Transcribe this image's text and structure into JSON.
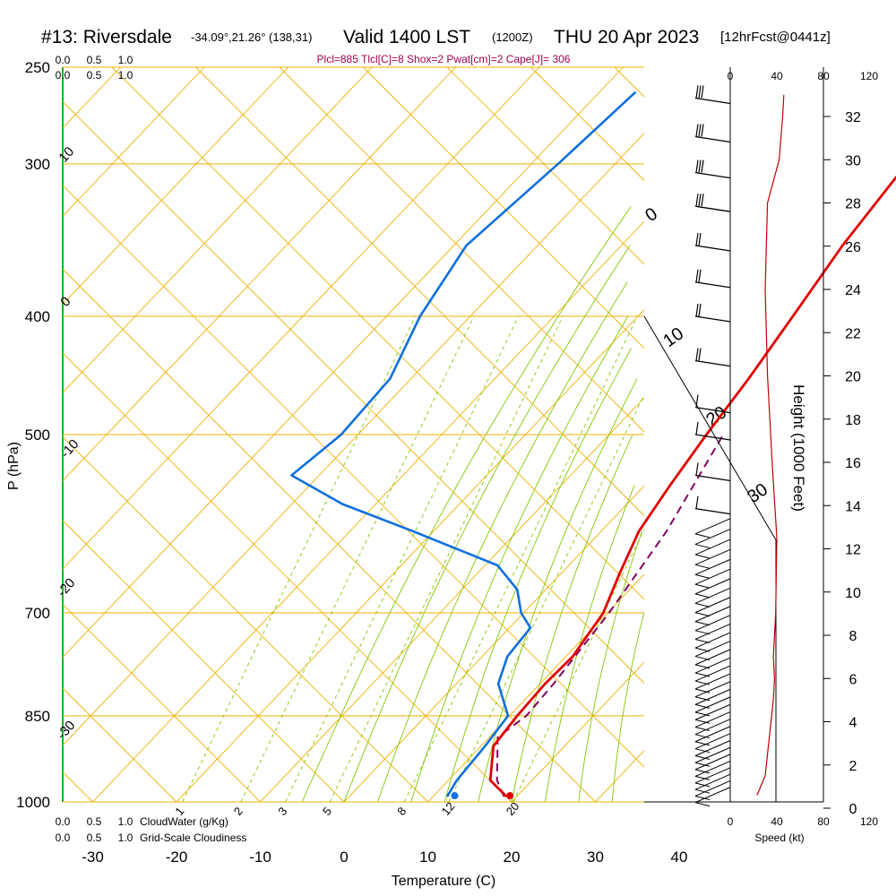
{
  "header": {
    "station": "#13: Riversdale",
    "coords": "-34.09°,21.26° (138,31)",
    "valid": "Valid 1400 LST",
    "utc": "(1200Z)",
    "date": "THU 20 Apr 2023",
    "forecast": "[12hrFcst@0441z]",
    "indices": "Plcl=885 Tlcl[C]=8 Shox=2 Pwat[cm]=2 Cape[J]= 306"
  },
  "colors": {
    "isotherm": "#f0b000",
    "mixing_ratio": "#80c800",
    "temperature": "#e00000",
    "dewpoint": "#1070e0",
    "parcel": "#800060",
    "cloudwater": "#20b020",
    "height": "#c00000",
    "indices": "#a00050"
  },
  "chart_data": {
    "type": "skewt",
    "xlabel": "Temperature (C)",
    "ylabel": "P (hPa)",
    "y2label": "Height (1000 Feet)",
    "x_ticks": [
      -30,
      -20,
      -10,
      0,
      10,
      20,
      30,
      40
    ],
    "p_ticks": [
      250,
      300,
      400,
      500,
      700,
      850,
      1000
    ],
    "p_range": [
      1000,
      250
    ],
    "height_ticks": [
      0,
      2,
      4,
      6,
      8,
      10,
      12,
      14,
      16,
      18,
      20,
      22,
      24,
      26,
      28,
      30,
      32
    ],
    "speed_label": "Speed (kt)",
    "speed_ticks": [
      "0",
      "40",
      "80",
      "120"
    ],
    "cloudwater_label": "CloudWater (g/Kg)",
    "cloudwater_ticks": [
      "0.0",
      "0.5",
      "1.0"
    ],
    "cloudiness_label": "Grid-Scale Cloudiness",
    "cloudiness_ticks": [
      "0.0",
      "0.5",
      "1.0"
    ],
    "isotherm_labels": [
      "10",
      "0",
      "-10",
      "-20",
      "-30"
    ],
    "mixing_ratio_labels": [
      "1",
      "2",
      "3",
      "5",
      "8",
      "12",
      "20"
    ],
    "theta_labels": [
      "0",
      "10",
      "20",
      "30"
    ],
    "temperature": [
      {
        "p": 990,
        "t": 18.8
      },
      {
        "p": 960,
        "t": 15.0
      },
      {
        "p": 900,
        "t": 11.5
      },
      {
        "p": 850,
        "t": 10.9
      },
      {
        "p": 800,
        "t": 10.6
      },
      {
        "p": 760,
        "t": 10.8
      },
      {
        "p": 700,
        "t": 9.5
      },
      {
        "p": 650,
        "t": 7.0
      },
      {
        "p": 600,
        "t": 4.5
      },
      {
        "p": 550,
        "t": 3.0
      },
      {
        "p": 500,
        "t": 1.6
      },
      {
        "p": 450,
        "t": 0.3
      },
      {
        "p": 400,
        "t": -1.5
      },
      {
        "p": 350,
        "t": -3.6
      },
      {
        "p": 300,
        "t": -5.2
      },
      {
        "p": 262,
        "t": -6.7
      }
    ],
    "dewpoint": [
      {
        "p": 990,
        "t": 11.7
      },
      {
        "p": 960,
        "t": 11.0
      },
      {
        "p": 900,
        "t": 10.5
      },
      {
        "p": 850,
        "t": 9.8
      },
      {
        "p": 800,
        "t": 5.0
      },
      {
        "p": 760,
        "t": 3.0
      },
      {
        "p": 720,
        "t": 2.5
      },
      {
        "p": 700,
        "t": -0.3
      },
      {
        "p": 670,
        "t": -3.4
      },
      {
        "p": 640,
        "t": -8.5
      },
      {
        "p": 600,
        "t": -22.5
      },
      {
        "p": 570,
        "t": -34.0
      },
      {
        "p": 540,
        "t": -43.3
      },
      {
        "p": 500,
        "t": -42.0
      },
      {
        "p": 450,
        "t": -42.5
      },
      {
        "p": 400,
        "t": -46.0
      },
      {
        "p": 350,
        "t": -48.5
      },
      {
        "p": 300,
        "t": -46.8
      },
      {
        "p": 262,
        "t": -45.7
      }
    ],
    "parcel": [
      {
        "p": 990,
        "t": 18.5
      },
      {
        "p": 960,
        "t": 15.8
      },
      {
        "p": 885,
        "t": 11.0
      },
      {
        "p": 850,
        "t": 12.0
      },
      {
        "p": 800,
        "t": 11.6
      },
      {
        "p": 700,
        "t": 10.2
      },
      {
        "p": 600,
        "t": 7.8
      },
      {
        "p": 500,
        "t": 3.6
      }
    ],
    "surface": {
      "t": 19.2,
      "td": 12.6
    },
    "winds": [
      {
        "p": 265,
        "speed": 25
      },
      {
        "p": 285,
        "speed": 25
      },
      {
        "p": 305,
        "speed": 25
      },
      {
        "p": 325,
        "speed": 25
      },
      {
        "p": 350,
        "speed": 20
      },
      {
        "p": 375,
        "speed": 20
      },
      {
        "p": 400,
        "speed": 15
      },
      {
        "p": 435,
        "speed": 15
      },
      {
        "p": 475,
        "speed": 10
      },
      {
        "p": 500,
        "speed": 10
      },
      {
        "p": 540,
        "speed": 10
      },
      {
        "p": 575,
        "speed": 10
      }
    ],
    "height_profile": [
      {
        "kft": 0.6,
        "kt": 23
      },
      {
        "kft": 1.5,
        "kt": 30
      },
      {
        "kft": 3,
        "kt": 33
      },
      {
        "kft": 5,
        "kt": 37
      },
      {
        "kft": 6,
        "kt": 38
      },
      {
        "kft": 7,
        "kt": 37
      },
      {
        "kft": 9,
        "kt": 39
      },
      {
        "kft": 12.5,
        "kt": 40
      },
      {
        "kft": 16,
        "kt": 36
      },
      {
        "kft": 20,
        "kt": 32
      },
      {
        "kft": 24,
        "kt": 30
      },
      {
        "kft": 28,
        "kt": 32
      },
      {
        "kft": 30,
        "kt": 42
      },
      {
        "kft": 32,
        "kt": 45
      },
      {
        "kft": 33,
        "kt": 46
      }
    ]
  }
}
